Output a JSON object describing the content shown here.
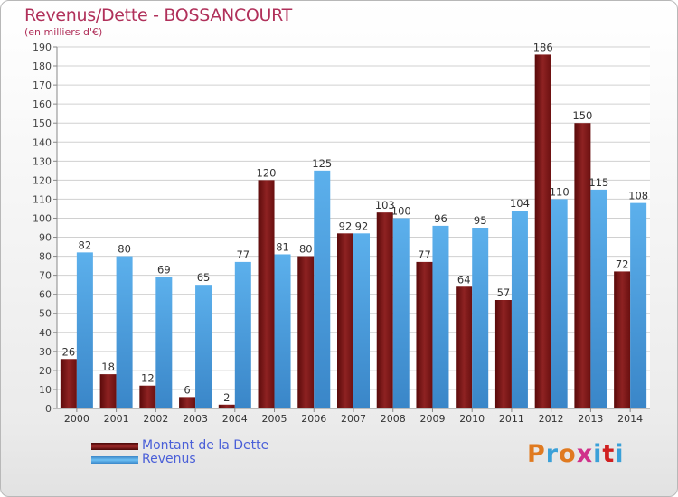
{
  "chart_data": {
    "type": "bar",
    "title": "Revenus/Dette - BOSSANCOURT",
    "subtitle": "(en milliers d'€)",
    "categories": [
      "2000",
      "2001",
      "2002",
      "2003",
      "2004",
      "2005",
      "2006",
      "2007",
      "2008",
      "2009",
      "2010",
      "2011",
      "2012",
      "2013",
      "2014"
    ],
    "series": [
      {
        "name": "Montant de la Dette",
        "color": "#8b1a1a",
        "values": [
          26,
          18,
          12,
          6,
          2,
          120,
          80,
          92,
          103,
          77,
          64,
          57,
          186,
          150,
          72
        ]
      },
      {
        "name": "Revenus",
        "color": "#4a9fe0",
        "values": [
          82,
          80,
          69,
          65,
          77,
          81,
          125,
          92,
          100,
          96,
          95,
          104,
          110,
          115,
          108
        ]
      }
    ],
    "ylim": [
      0,
      190
    ],
    "yticks": [
      0,
      10,
      20,
      30,
      40,
      50,
      60,
      70,
      80,
      90,
      100,
      110,
      120,
      130,
      140,
      150,
      160,
      170,
      180,
      190
    ],
    "grid": true,
    "legend_position": "bottom-left"
  },
  "logo": {
    "text": "Proxiti",
    "colors": [
      "#e07a20",
      "#3aa0d8",
      "#e07a20",
      "#d0308a",
      "#3aa0d8",
      "#d02020",
      "#3aa0d8"
    ]
  }
}
